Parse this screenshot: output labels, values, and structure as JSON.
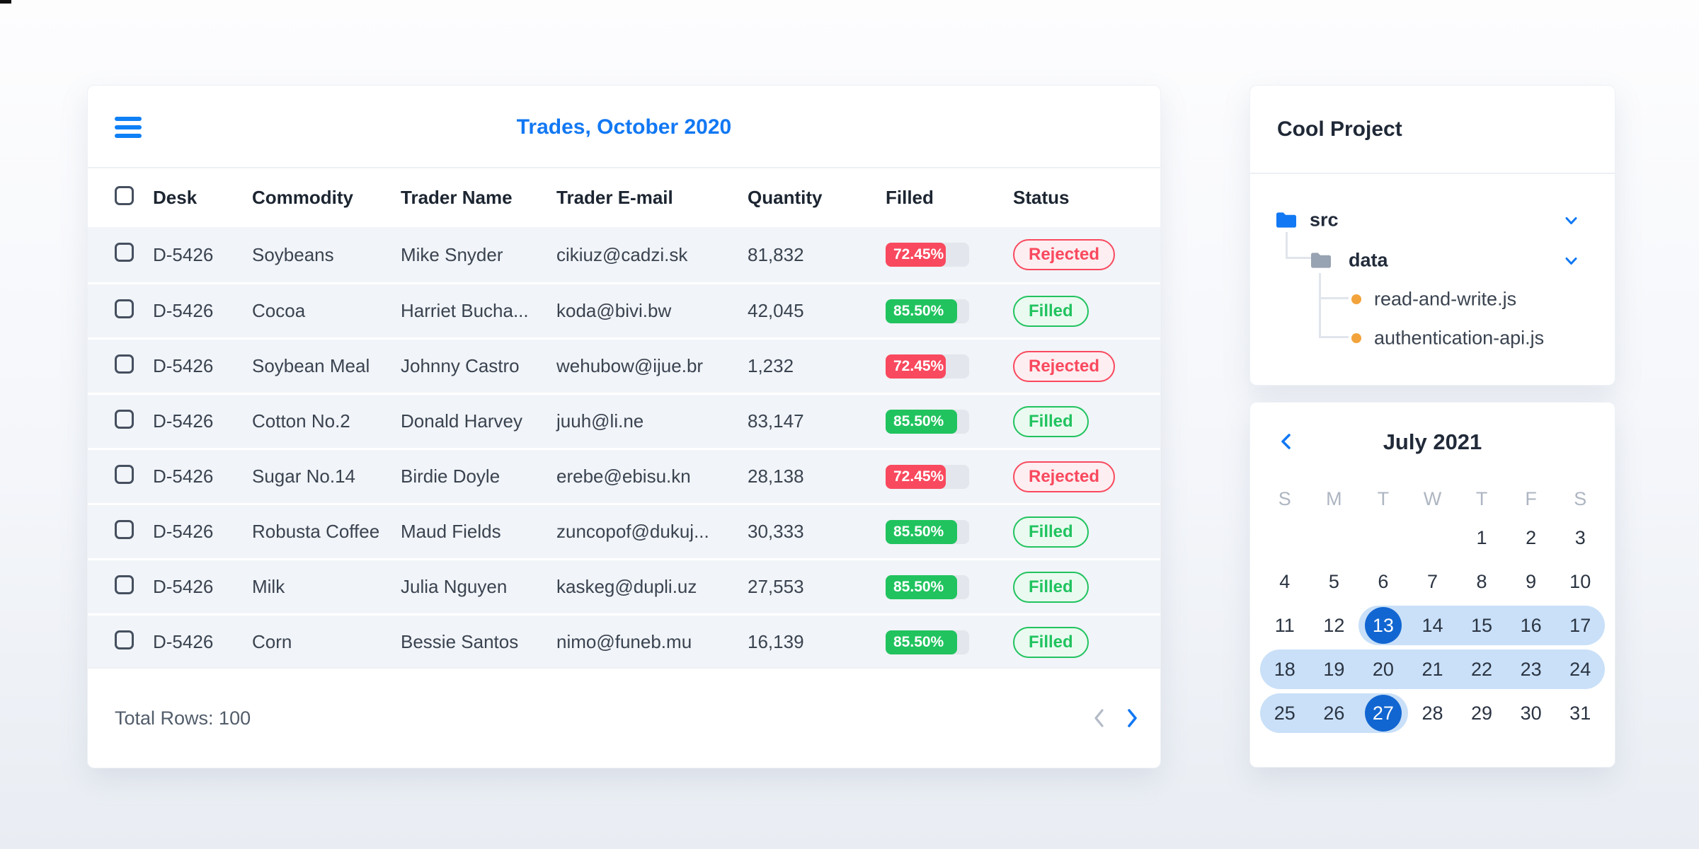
{
  "trades": {
    "title": "Trades, October 2020",
    "columns": [
      "Desk",
      "Commodity",
      "Trader Name",
      "Trader E-mail",
      "Quantity",
      "Filled",
      "Status"
    ],
    "rows": [
      {
        "desk": "D-5426",
        "commodity": "Soybeans",
        "trader": "Mike Snyder",
        "email": "cikiuz@cadzi.sk",
        "quantity": "81,832",
        "filled": "72.45%",
        "filled_pct": 72.45,
        "status": "Rejected"
      },
      {
        "desk": "D-5426",
        "commodity": "Cocoa",
        "trader": "Harriet Bucha...",
        "email": "koda@bivi.bw",
        "quantity": "42,045",
        "filled": "85.50%",
        "filled_pct": 85.5,
        "status": "Filled"
      },
      {
        "desk": "D-5426",
        "commodity": "Soybean Meal",
        "trader": "Johnny Castro",
        "email": "wehubow@ijue.br",
        "quantity": "1,232",
        "filled": "72.45%",
        "filled_pct": 72.45,
        "status": "Rejected"
      },
      {
        "desk": "D-5426",
        "commodity": "Cotton No.2",
        "trader": "Donald Harvey",
        "email": "juuh@li.ne",
        "quantity": "83,147",
        "filled": "85.50%",
        "filled_pct": 85.5,
        "status": "Filled"
      },
      {
        "desk": "D-5426",
        "commodity": "Sugar No.14",
        "trader": "Birdie Doyle",
        "email": "erebe@ebisu.kn",
        "quantity": "28,138",
        "filled": "72.45%",
        "filled_pct": 72.45,
        "status": "Rejected"
      },
      {
        "desk": "D-5426",
        "commodity": "Robusta Coffee",
        "trader": "Maud Fields",
        "email": "zuncopof@dukuj...",
        "quantity": "30,333",
        "filled": "85.50%",
        "filled_pct": 85.5,
        "status": "Filled"
      },
      {
        "desk": "D-5426",
        "commodity": "Milk",
        "trader": "Julia Nguyen",
        "email": "kaskeg@dupli.uz",
        "quantity": "27,553",
        "filled": "85.50%",
        "filled_pct": 85.5,
        "status": "Filled"
      },
      {
        "desk": "D-5426",
        "commodity": "Corn",
        "trader": "Bessie Santos",
        "email": "nimo@funeb.mu",
        "quantity": "16,139",
        "filled": "85.50%",
        "filled_pct": 85.5,
        "status": "Filled"
      }
    ],
    "total_label": "Total Rows: 100"
  },
  "project": {
    "title": "Cool Project",
    "tree": [
      {
        "label": "src",
        "icon": "folder-blue",
        "expanded": true,
        "bold": true
      },
      {
        "label": "data",
        "icon": "folder-gray",
        "expanded": true,
        "bold": true
      },
      {
        "label": "read-and-write.js",
        "icon": "file-dot",
        "expanded": false,
        "bold": false
      },
      {
        "label": "authentication-api.js",
        "icon": "file-dot",
        "expanded": false,
        "bold": false
      }
    ]
  },
  "calendar": {
    "title": "July 2021",
    "day_headers": [
      "S",
      "M",
      "T",
      "W",
      "T",
      "F",
      "S"
    ],
    "weeks": [
      [
        "",
        "",
        "",
        "",
        "1",
        "2",
        "3"
      ],
      [
        "4",
        "5",
        "6",
        "7",
        "8",
        "9",
        "10"
      ],
      [
        "11",
        "12",
        "13",
        "14",
        "15",
        "16",
        "17"
      ],
      [
        "18",
        "19",
        "20",
        "21",
        "22",
        "23",
        "24"
      ],
      [
        "25",
        "26",
        "27",
        "28",
        "29",
        "30",
        "31"
      ]
    ],
    "selected_range": {
      "start": 13,
      "end": 27
    }
  },
  "colors": {
    "accent_blue": "#1278f3",
    "selected_day_blue": "#1266d1",
    "range_blue": "#c9e0f8",
    "rejected_red": "#f9495e",
    "filled_green": "#21c35f",
    "bar_track": "#e3e7ed",
    "file_dot_orange": "#f2a33c"
  }
}
